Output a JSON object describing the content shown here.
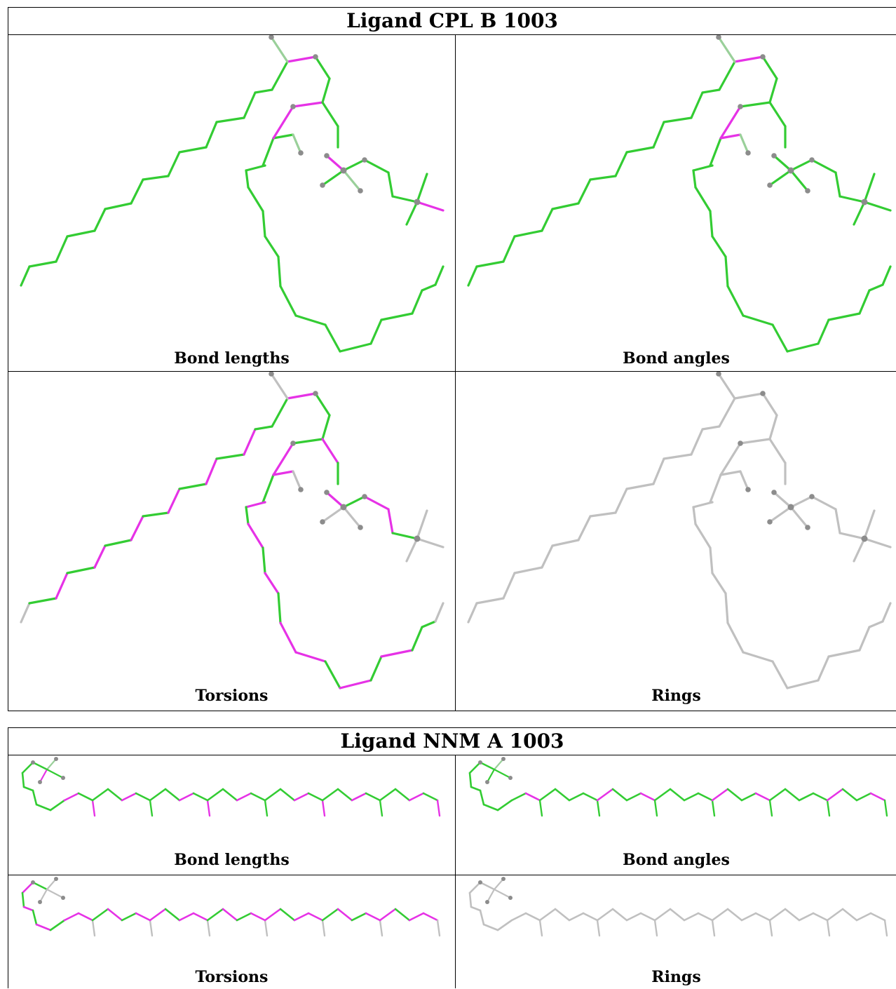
{
  "colors": {
    "green": "#33cc33",
    "magenta": "#e632e6",
    "grey_bond": "#c0c0c0",
    "atom": "#8c8c8c",
    "gradient_bond": "#9ad09a"
  },
  "ligand1": {
    "title": "Ligand CPL B 1003",
    "panels": [
      {
        "label": "Bond lengths",
        "mode": "lengths"
      },
      {
        "label": "Bond angles",
        "mode": "angles"
      },
      {
        "label": "Torsions",
        "mode": "torsions"
      },
      {
        "label": "Rings",
        "mode": "rings"
      }
    ]
  },
  "ligand2": {
    "title": "Ligand NNM A 1003",
    "panels": [
      {
        "label": "Bond lengths",
        "mode": "lengths"
      },
      {
        "label": "Bond angles",
        "mode": "angles"
      },
      {
        "label": "Torsions",
        "mode": "torsions"
      },
      {
        "label": "Rings",
        "mode": "rings"
      }
    ]
  }
}
